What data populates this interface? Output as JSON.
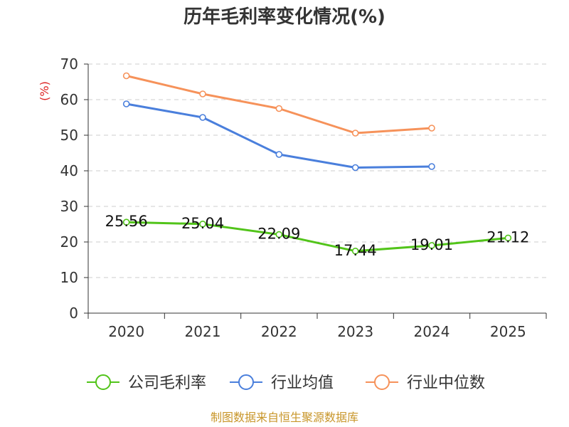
{
  "chart_data": {
    "type": "line",
    "title": "历年毛利率变化情况(%)",
    "ylabel": "(%)",
    "xlabel": "",
    "categories": [
      "2020",
      "2021",
      "2022",
      "2023",
      "2024",
      "2025"
    ],
    "yticks": [
      0,
      10,
      20,
      30,
      40,
      50,
      60,
      70
    ],
    "ylim": [
      0,
      70
    ],
    "grid": true,
    "legend_position": "bottom",
    "series": [
      {
        "name": "公司毛利率",
        "color": "#52c41a",
        "values": [
          25.56,
          25.04,
          22.09,
          17.44,
          19.01,
          21.12
        ],
        "labels": [
          "25.56",
          "25.04",
          "22.09",
          "17.44",
          "19.01",
          "21.12"
        ]
      },
      {
        "name": "行业均值",
        "color": "#4a7fdc",
        "values": [
          58.8,
          55.0,
          44.6,
          40.9,
          41.2,
          null
        ]
      },
      {
        "name": "行业中位数",
        "color": "#f6925a",
        "values": [
          66.7,
          61.6,
          57.5,
          50.6,
          52.0,
          null
        ]
      }
    ]
  },
  "source_text": "制图数据来自恒生聚源数据库",
  "colors": {
    "axis": "#333333",
    "grid": "#cccccc",
    "unit": "#dd2222",
    "source": "#c8962a"
  }
}
